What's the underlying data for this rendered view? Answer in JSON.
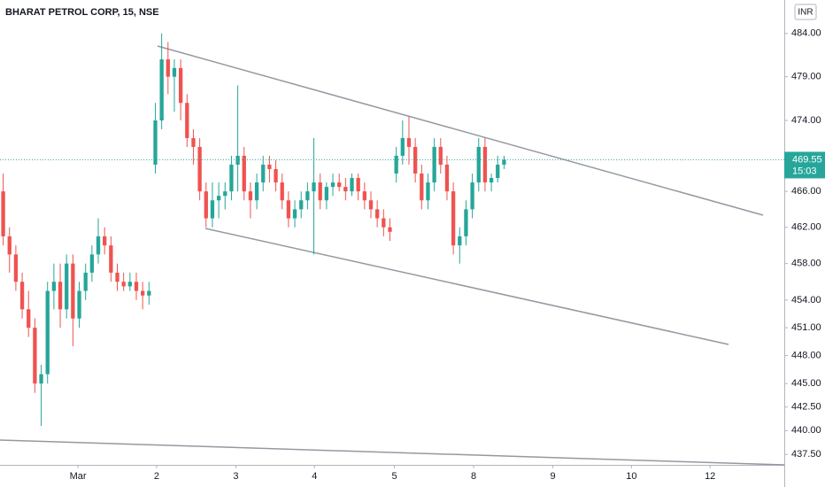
{
  "chart_data": {
    "type": "candlestick",
    "title": "BHARAT PETROL CORP, 15, NSE",
    "currency": "INR",
    "log_scale": true,
    "up_color": "#26a69a",
    "down_color": "#ef5350",
    "ylim": [
      436.4,
      487.9
    ],
    "yticks": [
      {
        "value": 484,
        "label": "484.00"
      },
      {
        "value": 479,
        "label": "479.00"
      },
      {
        "value": 474,
        "label": "474.00"
      },
      {
        "value": 466,
        "label": "466.00"
      },
      {
        "value": 462,
        "label": "462.00"
      },
      {
        "value": 458,
        "label": "458.00"
      },
      {
        "value": 454,
        "label": "454.00"
      },
      {
        "value": 451,
        "label": "451.00"
      },
      {
        "value": 448,
        "label": "448.00"
      },
      {
        "value": 445,
        "label": "445.00"
      },
      {
        "value": 442.5,
        "label": "442.50"
      },
      {
        "value": 440,
        "label": "440.00"
      },
      {
        "value": 437.5,
        "label": "437.50"
      }
    ],
    "xlim": [
      0,
      123.7
    ],
    "xticks": [
      {
        "value": 12.3,
        "label": "Mar"
      },
      {
        "value": 24.7,
        "label": "2"
      },
      {
        "value": 37.2,
        "label": "3"
      },
      {
        "value": 49.6,
        "label": "4"
      },
      {
        "value": 62.2,
        "label": "5"
      },
      {
        "value": 74.7,
        "label": "8"
      },
      {
        "value": 87.2,
        "label": "9"
      },
      {
        "value": 99.6,
        "label": "10"
      },
      {
        "value": 112,
        "label": "12"
      }
    ],
    "last_price": 469.55,
    "last_time_label": "15:03",
    "open": [
      466,
      461,
      459,
      456,
      453,
      451,
      445,
      446,
      455,
      456,
      453,
      458,
      452,
      455,
      457,
      459,
      461,
      460,
      457,
      456,
      455.5,
      456,
      455,
      454.5,
      469,
      474,
      481,
      479,
      480,
      476,
      472,
      471,
      466,
      463,
      465,
      465.5,
      466,
      469,
      470,
      466,
      465,
      467,
      469,
      468.5,
      467,
      465,
      463,
      464,
      465,
      466,
      467,
      465,
      466.5,
      467,
      466.5,
      466,
      467.5,
      466,
      465,
      464,
      463,
      462,
      468,
      470,
      472,
      471,
      468,
      465,
      467,
      471,
      469,
      466,
      460,
      461,
      464,
      467,
      471,
      467,
      467.5,
      469
    ],
    "high": [
      468,
      462,
      460,
      457,
      455,
      452,
      447,
      456,
      458,
      458,
      459,
      459,
      456,
      458,
      460,
      463,
      462,
      461,
      458,
      457,
      457,
      457,
      456,
      456,
      476,
      484,
      483,
      481,
      481,
      477,
      473,
      472,
      467,
      467,
      467,
      467,
      470,
      478,
      471,
      467,
      468,
      470,
      470,
      469.5,
      468,
      466,
      465,
      466,
      467,
      472,
      468,
      467,
      468,
      468,
      467.5,
      468,
      468,
      467,
      466,
      465,
      464,
      463,
      471,
      474,
      474.5,
      472,
      469,
      468,
      472,
      472,
      470,
      467,
      462,
      465,
      468,
      472,
      472,
      468,
      470,
      470
    ],
    "low": [
      460,
      457,
      455,
      452,
      450,
      444,
      440.5,
      445,
      453,
      451,
      452,
      449,
      451,
      454,
      456,
      458,
      459,
      456,
      455,
      455,
      455,
      454,
      453,
      453.5,
      468,
      473,
      477,
      475,
      474,
      471,
      469,
      465,
      462,
      462,
      463,
      464,
      465,
      466,
      465,
      463,
      464,
      466,
      467,
      466,
      464,
      462,
      462,
      463,
      464,
      459,
      464,
      464,
      465.5,
      466,
      465,
      465.5,
      465,
      464,
      463,
      462,
      461,
      460.5,
      467,
      469,
      469,
      467,
      464,
      464,
      466,
      468,
      465,
      459,
      458,
      460,
      463,
      466,
      466,
      466,
      467,
      468.5
    ],
    "close": [
      461,
      459,
      456,
      453,
      451,
      445,
      446,
      455,
      456,
      453,
      458,
      452,
      455,
      457,
      459,
      461,
      460,
      457,
      456,
      455.5,
      456,
      455,
      454.5,
      455,
      474,
      481,
      479,
      480,
      476,
      472,
      471,
      466,
      463,
      465,
      465.5,
      466,
      469,
      470,
      466,
      465,
      467,
      469,
      468.5,
      467,
      465,
      463,
      464,
      465,
      466,
      467,
      465,
      466.5,
      467,
      466.5,
      466,
      467.5,
      466,
      465,
      464,
      463,
      462,
      461.5,
      470,
      472,
      471,
      468,
      465,
      467,
      471,
      469,
      466,
      460,
      461,
      464,
      467,
      471,
      467,
      467.5,
      469,
      469.55
    ]
  }
}
